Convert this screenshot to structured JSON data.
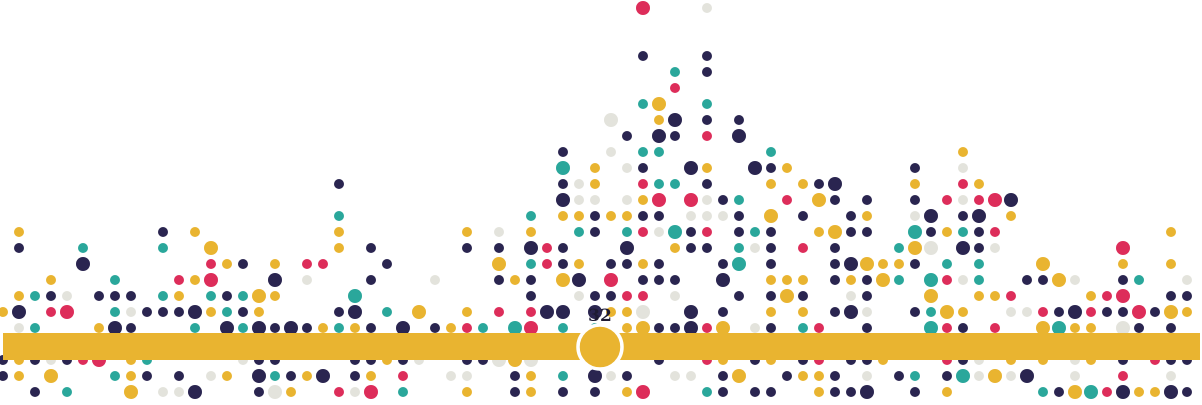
{
  "slider": {
    "value_label": "32"
  }
}
